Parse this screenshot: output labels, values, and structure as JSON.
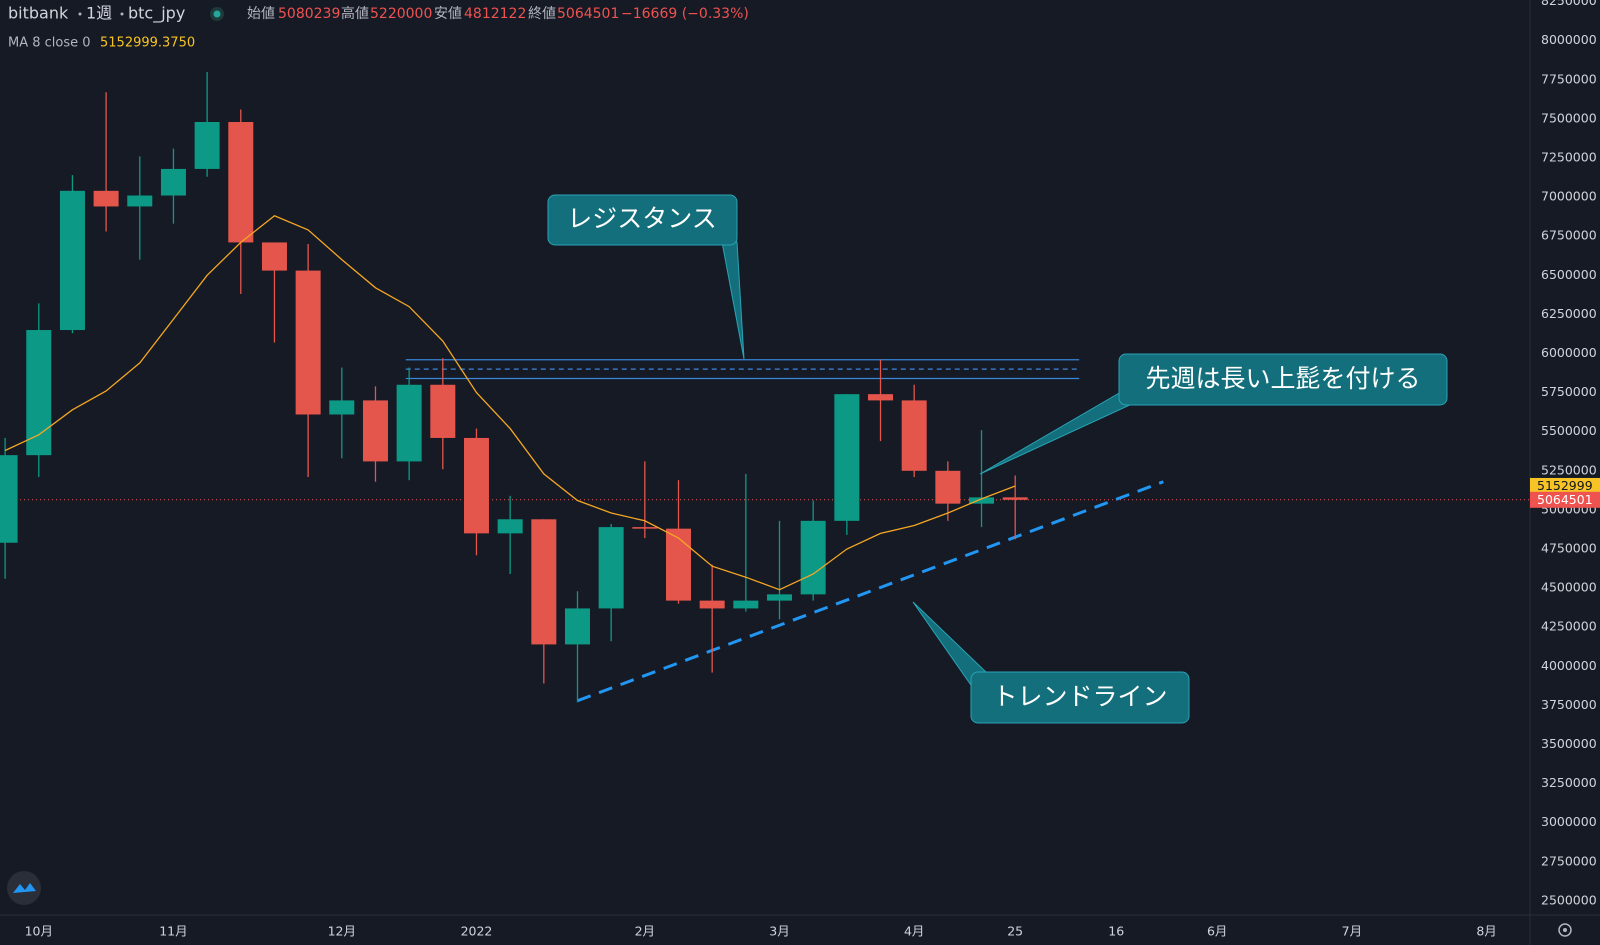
{
  "chart_data": {
    "type": "candlestick",
    "header": {
      "exchange": "bitbank",
      "interval": "1週",
      "symbol": "btc_jpy",
      "open_label": "始値",
      "open": 5080239,
      "high_label": "高値",
      "high": 5220000,
      "low_label": "安値",
      "low": 4812122,
      "close_label": "終値",
      "close": 5064501,
      "change": "−16669 (−0.33%)"
    },
    "categories": [
      null,
      "10月",
      null,
      null,
      null,
      "11月",
      null,
      null,
      null,
      null,
      "12月",
      null,
      null,
      null,
      "2022",
      null,
      null,
      null,
      null,
      "2月",
      null,
      null,
      null,
      "3月",
      null,
      null,
      null,
      "4月",
      null,
      null,
      "25",
      null,
      null,
      "16",
      null,
      null,
      "6月",
      null,
      null,
      null,
      "7月",
      null,
      null,
      null,
      "8月",
      null
    ],
    "open": [
      4790000,
      5350000,
      6150000,
      7040000,
      6940000,
      7010000,
      7180000,
      7480000,
      6710000,
      6530000,
      5610000,
      5700000,
      5310000,
      5800000,
      5460000,
      4850000,
      4940000,
      4140000,
      4370000,
      4890000,
      4880000,
      4420000,
      4370000,
      4420000,
      4460000,
      4930000,
      5740000,
      5700000,
      5250000,
      5040000,
      5080239,
      null,
      null,
      null,
      null,
      null,
      null,
      null,
      null,
      null,
      null,
      null,
      null,
      null,
      null,
      null
    ],
    "high": [
      5460000,
      6320000,
      7140000,
      7670000,
      7260000,
      7310000,
      7800000,
      7560000,
      6710000,
      6700000,
      5910000,
      5790000,
      5910000,
      5970000,
      5520000,
      5090000,
      4940000,
      4480000,
      4910000,
      5310000,
      5190000,
      4650000,
      5230000,
      4930000,
      5060000,
      5740000,
      5960000,
      5800000,
      5310000,
      5510000,
      5220000,
      null,
      null,
      null,
      null,
      null,
      null,
      null,
      null,
      null,
      null,
      null,
      null,
      null,
      null,
      null
    ],
    "low": [
      4560000,
      5210000,
      6130000,
      6780000,
      6600000,
      6830000,
      7130000,
      6380000,
      6070000,
      5210000,
      5330000,
      5180000,
      5190000,
      5260000,
      4710000,
      4590000,
      3890000,
      3770000,
      4160000,
      4820000,
      4400000,
      3960000,
      4350000,
      4300000,
      4420000,
      4840000,
      5440000,
      5210000,
      4930000,
      4890000,
      4812122,
      null,
      null,
      null,
      null,
      null,
      null,
      null,
      null,
      null,
      null,
      null,
      null,
      null,
      null,
      null
    ],
    "close": [
      5350000,
      6150000,
      7040000,
      6940000,
      7010000,
      7180000,
      7480000,
      6710000,
      6530000,
      5610000,
      5700000,
      5310000,
      5800000,
      5460000,
      4850000,
      4940000,
      4140000,
      4370000,
      4890000,
      4880000,
      4420000,
      4370000,
      4420000,
      4460000,
      4930000,
      5740000,
      5700000,
      5250000,
      5040000,
      5080000,
      5064501,
      null,
      null,
      null,
      null,
      null,
      null,
      null,
      null,
      null,
      null,
      null,
      null,
      null,
      null,
      null
    ],
    "up_color": "#0c9a86",
    "down_color": "#e4564c",
    "ma": {
      "name": "MA 8 close 0",
      "last": {
        "value": 5152999.375,
        "label": "5152999.3750"
      },
      "color": "#f5a623",
      "values": [
        5380000,
        5480000,
        5640000,
        5760000,
        5940000,
        6220000,
        6500000,
        6710000,
        6880000,
        6790000,
        6600000,
        6420000,
        6300000,
        6080000,
        5750000,
        5520000,
        5230000,
        5060000,
        4980000,
        4930000,
        4820000,
        4640000,
        4570000,
        4490000,
        4590000,
        4750000,
        4850000,
        4900000,
        4980000,
        5070000,
        5152999.375,
        null,
        null,
        null,
        null,
        null,
        null,
        null,
        null,
        null,
        null,
        null,
        null,
        null,
        null,
        null
      ]
    },
    "ylim": [
      2410000,
      8260000
    ],
    "yticks": [
      2500000,
      2750000,
      3000000,
      3250000,
      3500000,
      3750000,
      4000000,
      4250000,
      4500000,
      4750000,
      5000000,
      5250000,
      5500000,
      5750000,
      6000000,
      6250000,
      6500000,
      6750000,
      7000000,
      7250000,
      7500000,
      7750000,
      8000000,
      8250000
    ],
    "grid": false,
    "price_tags": [
      {
        "value": 5152999,
        "color": "#f7c325",
        "text_color": "#131722",
        "line": false
      },
      {
        "value": 5064501,
        "color": "#ef5350",
        "text_color": "#ffffff",
        "line": true
      }
    ],
    "resistance": {
      "label": "レジスタンス",
      "x": [
        11.9,
        31.9
      ],
      "levels": [
        5960000,
        5900000,
        5840000
      ],
      "color": "#3a86d8"
    },
    "trendline": {
      "label": "トレンドライン",
      "x": [
        17,
        34.4
      ],
      "y": [
        3780000,
        5180000
      ],
      "color": "#2196f3"
    },
    "note": "先週は長い上髭を付ける"
  }
}
